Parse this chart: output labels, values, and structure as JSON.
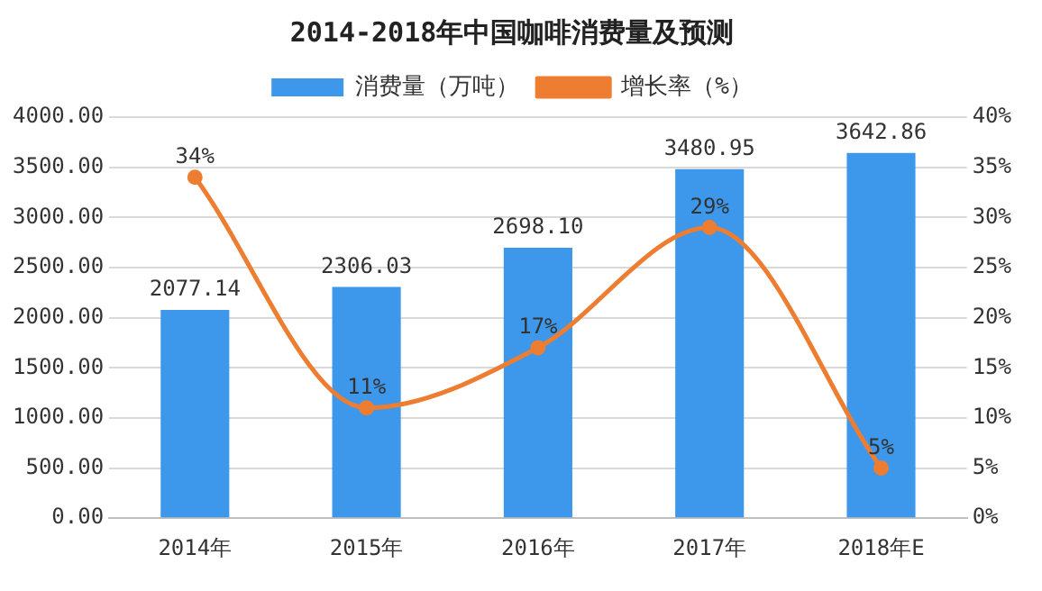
{
  "chart_data": {
    "type": "bar",
    "title": "2014-2018年中国咖啡消费量及预测",
    "categories": [
      "2014年",
      "2015年",
      "2016年",
      "2017年",
      "2018年E"
    ],
    "series": [
      {
        "name": "消费量（万吨）",
        "color": "#3d97ea",
        "values": [
          2077.14,
          2306.03,
          2698.1,
          3480.95,
          3642.86
        ],
        "value_labels": [
          "2077.14",
          "2306.03",
          "2698.10",
          "3480.95",
          "3642.86"
        ]
      },
      {
        "name": "增长率（%）",
        "type": "line",
        "axis": "y2",
        "color": "#ed7d31",
        "values": [
          34,
          11,
          17,
          29,
          5
        ],
        "value_labels": [
          "34%",
          "11%",
          "17%",
          "29%",
          "5%"
        ]
      }
    ],
    "ylim": [
      0,
      4000
    ],
    "yticks": [
      {
        "value": 0,
        "label": "0.00"
      },
      {
        "value": 500,
        "label": "500.00"
      },
      {
        "value": 1000,
        "label": "1000.00"
      },
      {
        "value": 1500,
        "label": "1500.00"
      },
      {
        "value": 2000,
        "label": "2000.00"
      },
      {
        "value": 2500,
        "label": "2500.00"
      },
      {
        "value": 3000,
        "label": "3000.00"
      },
      {
        "value": 3500,
        "label": "3500.00"
      },
      {
        "value": 4000,
        "label": "4000.00"
      }
    ],
    "y2lim": [
      0,
      40
    ],
    "y2ticks": [
      {
        "value": 0,
        "label": "0%"
      },
      {
        "value": 5,
        "label": "5%"
      },
      {
        "value": 10,
        "label": "10%"
      },
      {
        "value": 15,
        "label": "15%"
      },
      {
        "value": 20,
        "label": "20%"
      },
      {
        "value": 25,
        "label": "25%"
      },
      {
        "value": 30,
        "label": "30%"
      },
      {
        "value": 35,
        "label": "35%"
      },
      {
        "value": 40,
        "label": "40%"
      }
    ],
    "grid": "y",
    "legend": "top",
    "marker": "circle"
  }
}
